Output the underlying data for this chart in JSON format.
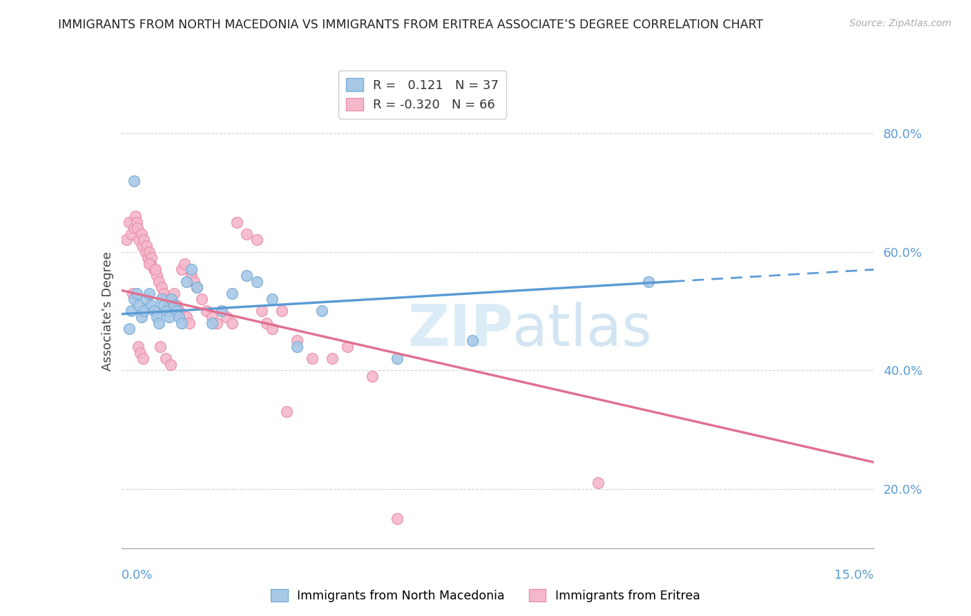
{
  "title": "IMMIGRANTS FROM NORTH MACEDONIA VS IMMIGRANTS FROM ERITREA ASSOCIATE’S DEGREE CORRELATION CHART",
  "source": "Source: ZipAtlas.com",
  "ylabel": "Associate’s Degree",
  "right_yticks": [
    20.0,
    40.0,
    60.0,
    80.0
  ],
  "xlim": [
    0.0,
    15.0
  ],
  "ylim": [
    10.0,
    90.0
  ],
  "legend_blue_r": "0.121",
  "legend_blue_n": "37",
  "legend_pink_r": "-0.320",
  "legend_pink_n": "66",
  "blue_color": "#a8c8e8",
  "pink_color": "#f5b8cb",
  "blue_edge": "#7aaed4",
  "pink_edge": "#e890aa",
  "trend_blue_color": "#5b9bd5",
  "trend_pink_color": "#e07090",
  "watermark_color": "#cde5f5",
  "blue_scatter_x": [
    0.15,
    0.2,
    0.25,
    0.3,
    0.35,
    0.4,
    0.45,
    0.5,
    0.55,
    0.6,
    0.65,
    0.7,
    0.75,
    0.8,
    0.85,
    0.9,
    0.95,
    1.0,
    1.05,
    1.1,
    1.15,
    1.2,
    1.3,
    1.4,
    1.5,
    1.8,
    2.0,
    2.2,
    2.5,
    2.7,
    3.0,
    3.5,
    4.0,
    5.5,
    7.0,
    10.5,
    0.25
  ],
  "blue_scatter_y": [
    47,
    50,
    52,
    53,
    51,
    49,
    50,
    52,
    53,
    51,
    50,
    49,
    48,
    52,
    51,
    50,
    49,
    52,
    51,
    50,
    49,
    48,
    55,
    57,
    54,
    48,
    50,
    53,
    56,
    55,
    52,
    44,
    50,
    42,
    45,
    55,
    72
  ],
  "pink_scatter_x": [
    0.1,
    0.15,
    0.2,
    0.25,
    0.28,
    0.3,
    0.32,
    0.35,
    0.4,
    0.42,
    0.45,
    0.48,
    0.5,
    0.52,
    0.55,
    0.58,
    0.6,
    0.65,
    0.7,
    0.75,
    0.8,
    0.85,
    0.9,
    0.95,
    1.0,
    1.05,
    1.1,
    1.15,
    1.2,
    1.25,
    1.3,
    1.35,
    1.4,
    1.45,
    1.5,
    1.6,
    1.7,
    1.8,
    1.9,
    2.0,
    2.1,
    2.2,
    2.3,
    2.5,
    2.7,
    2.8,
    2.9,
    3.0,
    3.2,
    3.5,
    3.8,
    4.2,
    4.5,
    5.0,
    9.5,
    0.22,
    0.33,
    0.38,
    0.43,
    0.55,
    0.68,
    0.78,
    0.88,
    0.98,
    5.5,
    3.3
  ],
  "pink_scatter_y": [
    62,
    65,
    63,
    64,
    66,
    65,
    64,
    62,
    63,
    61,
    62,
    60,
    61,
    59,
    60,
    58,
    59,
    57,
    56,
    55,
    54,
    53,
    52,
    51,
    52,
    53,
    51,
    50,
    57,
    58,
    49,
    48,
    56,
    55,
    54,
    52,
    50,
    49,
    48,
    50,
    49,
    48,
    65,
    63,
    62,
    50,
    48,
    47,
    50,
    45,
    42,
    42,
    44,
    39,
    21,
    53,
    44,
    43,
    42,
    58,
    57,
    44,
    42,
    41,
    15,
    33
  ],
  "blue_trend_x0": 0.0,
  "blue_trend_y0": 49.5,
  "blue_trend_x1": 15.0,
  "blue_trend_y1": 57.0,
  "blue_trend_solid_end": 11.0,
  "pink_trend_x0": 0.0,
  "pink_trend_y0": 53.5,
  "pink_trend_x1": 15.0,
  "pink_trend_y1": 24.5
}
